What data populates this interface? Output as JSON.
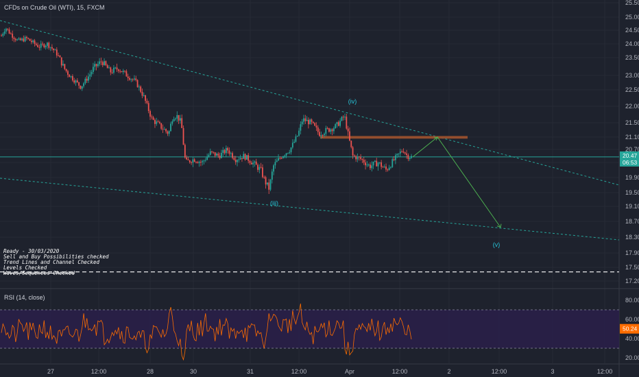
{
  "header": {
    "title": "CFDs on Crude Oil (WTI), 15, FXCM"
  },
  "rsi": {
    "title": "RSI (14, close)"
  },
  "notes": [
    "Ready - 30/03/2020",
    "Sell and Buy Possibilities checked",
    "Trend Lines and Channel Checked",
    "Levels Checked",
    "Waves/Sequences Checked"
  ],
  "colors": {
    "background": "#1e222d",
    "up": "#26a69a",
    "down": "#ef5350",
    "trend": "#26a69a",
    "arrow": "#4caf50",
    "resistance": "#a0522d",
    "rsi_line": "#ff6d00",
    "rsi_band": "#2a1f4a"
  },
  "chart_data": [
    {
      "type": "candlestick",
      "title": "CFDs on Crude Oil (WTI), 15, FXCM",
      "y_ticks": [
        "25.50",
        "25.00",
        "24.50",
        "24.00",
        "23.50",
        "23.00",
        "22.50",
        "22.00",
        "21.50",
        "21.10",
        "20.70",
        "20.30",
        "19.90",
        "19.50",
        "19.10",
        "18.70",
        "18.30",
        "17.90",
        "17.50",
        "17.20"
      ],
      "x_ticks": [
        "27",
        "12:00",
        "28",
        "30",
        "31",
        "12:00",
        "Apr",
        "12:00",
        "2",
        "12:00",
        "3",
        "12:00"
      ],
      "current_price": "20.47",
      "countdown": "06:53",
      "price_path": [
        [
          0,
          24.3
        ],
        [
          1,
          24.6
        ],
        [
          2,
          24.4
        ],
        [
          4,
          24.1
        ],
        [
          6,
          24.2
        ],
        [
          9,
          23.9
        ],
        [
          11,
          24.0
        ],
        [
          13,
          23.7
        ],
        [
          15,
          23.2
        ],
        [
          17,
          22.9
        ],
        [
          19,
          22.6
        ],
        [
          22,
          23.2
        ],
        [
          24,
          23.4
        ],
        [
          26,
          23.1
        ],
        [
          28,
          23.2
        ],
        [
          30,
          23.0
        ],
        [
          32,
          22.8
        ],
        [
          34,
          22.3
        ],
        [
          36,
          21.6
        ],
        [
          38,
          21.4
        ],
        [
          40,
          21.2
        ],
        [
          41,
          21.7
        ],
        [
          42,
          21.7
        ],
        [
          43,
          21.5
        ],
        [
          44,
          20.3
        ],
        [
          46,
          20.4
        ],
        [
          48,
          20.3
        ],
        [
          50,
          20.6
        ],
        [
          52,
          20.5
        ],
        [
          54,
          20.7
        ],
        [
          56,
          20.4
        ],
        [
          58,
          20.5
        ],
        [
          60,
          20.3
        ],
        [
          62,
          20.1
        ],
        [
          63,
          19.8
        ],
        [
          64,
          19.6
        ],
        [
          65,
          20.2
        ],
        [
          67,
          20.5
        ],
        [
          69,
          20.7
        ],
        [
          71,
          21.2
        ],
        [
          72,
          21.6
        ],
        [
          74,
          21.5
        ],
        [
          76,
          21.2
        ],
        [
          78,
          21.3
        ],
        [
          80,
          21.4
        ],
        [
          82,
          21.7
        ],
        [
          83,
          21.1
        ],
        [
          84,
          20.5
        ],
        [
          86,
          20.4
        ],
        [
          88,
          20.2
        ],
        [
          90,
          20.3
        ],
        [
          92,
          20.1
        ],
        [
          94,
          20.4
        ],
        [
          96,
          20.7
        ],
        [
          97,
          20.5
        ],
        [
          98,
          20.47
        ]
      ],
      "resistance_zone": [
        21.05,
        21.13
      ],
      "horizontal_level": 20.47,
      "dashed_level": 17.4,
      "wave_labels": [
        {
          "label": "(iii)",
          "price": 19.25
        },
        {
          "label": "(iv)",
          "price": 22.0
        },
        {
          "label": "(v)",
          "price": 18.3
        }
      ],
      "projection": [
        [
          20.47
        ],
        [
          21.1
        ],
        [
          18.55
        ]
      ]
    },
    {
      "type": "line",
      "title": "RSI (14, close)",
      "y_ticks": [
        "80.00",
        "60.00",
        "40.00",
        "20.00"
      ],
      "levels": [
        70,
        30
      ],
      "current_value": "50.24"
    }
  ]
}
